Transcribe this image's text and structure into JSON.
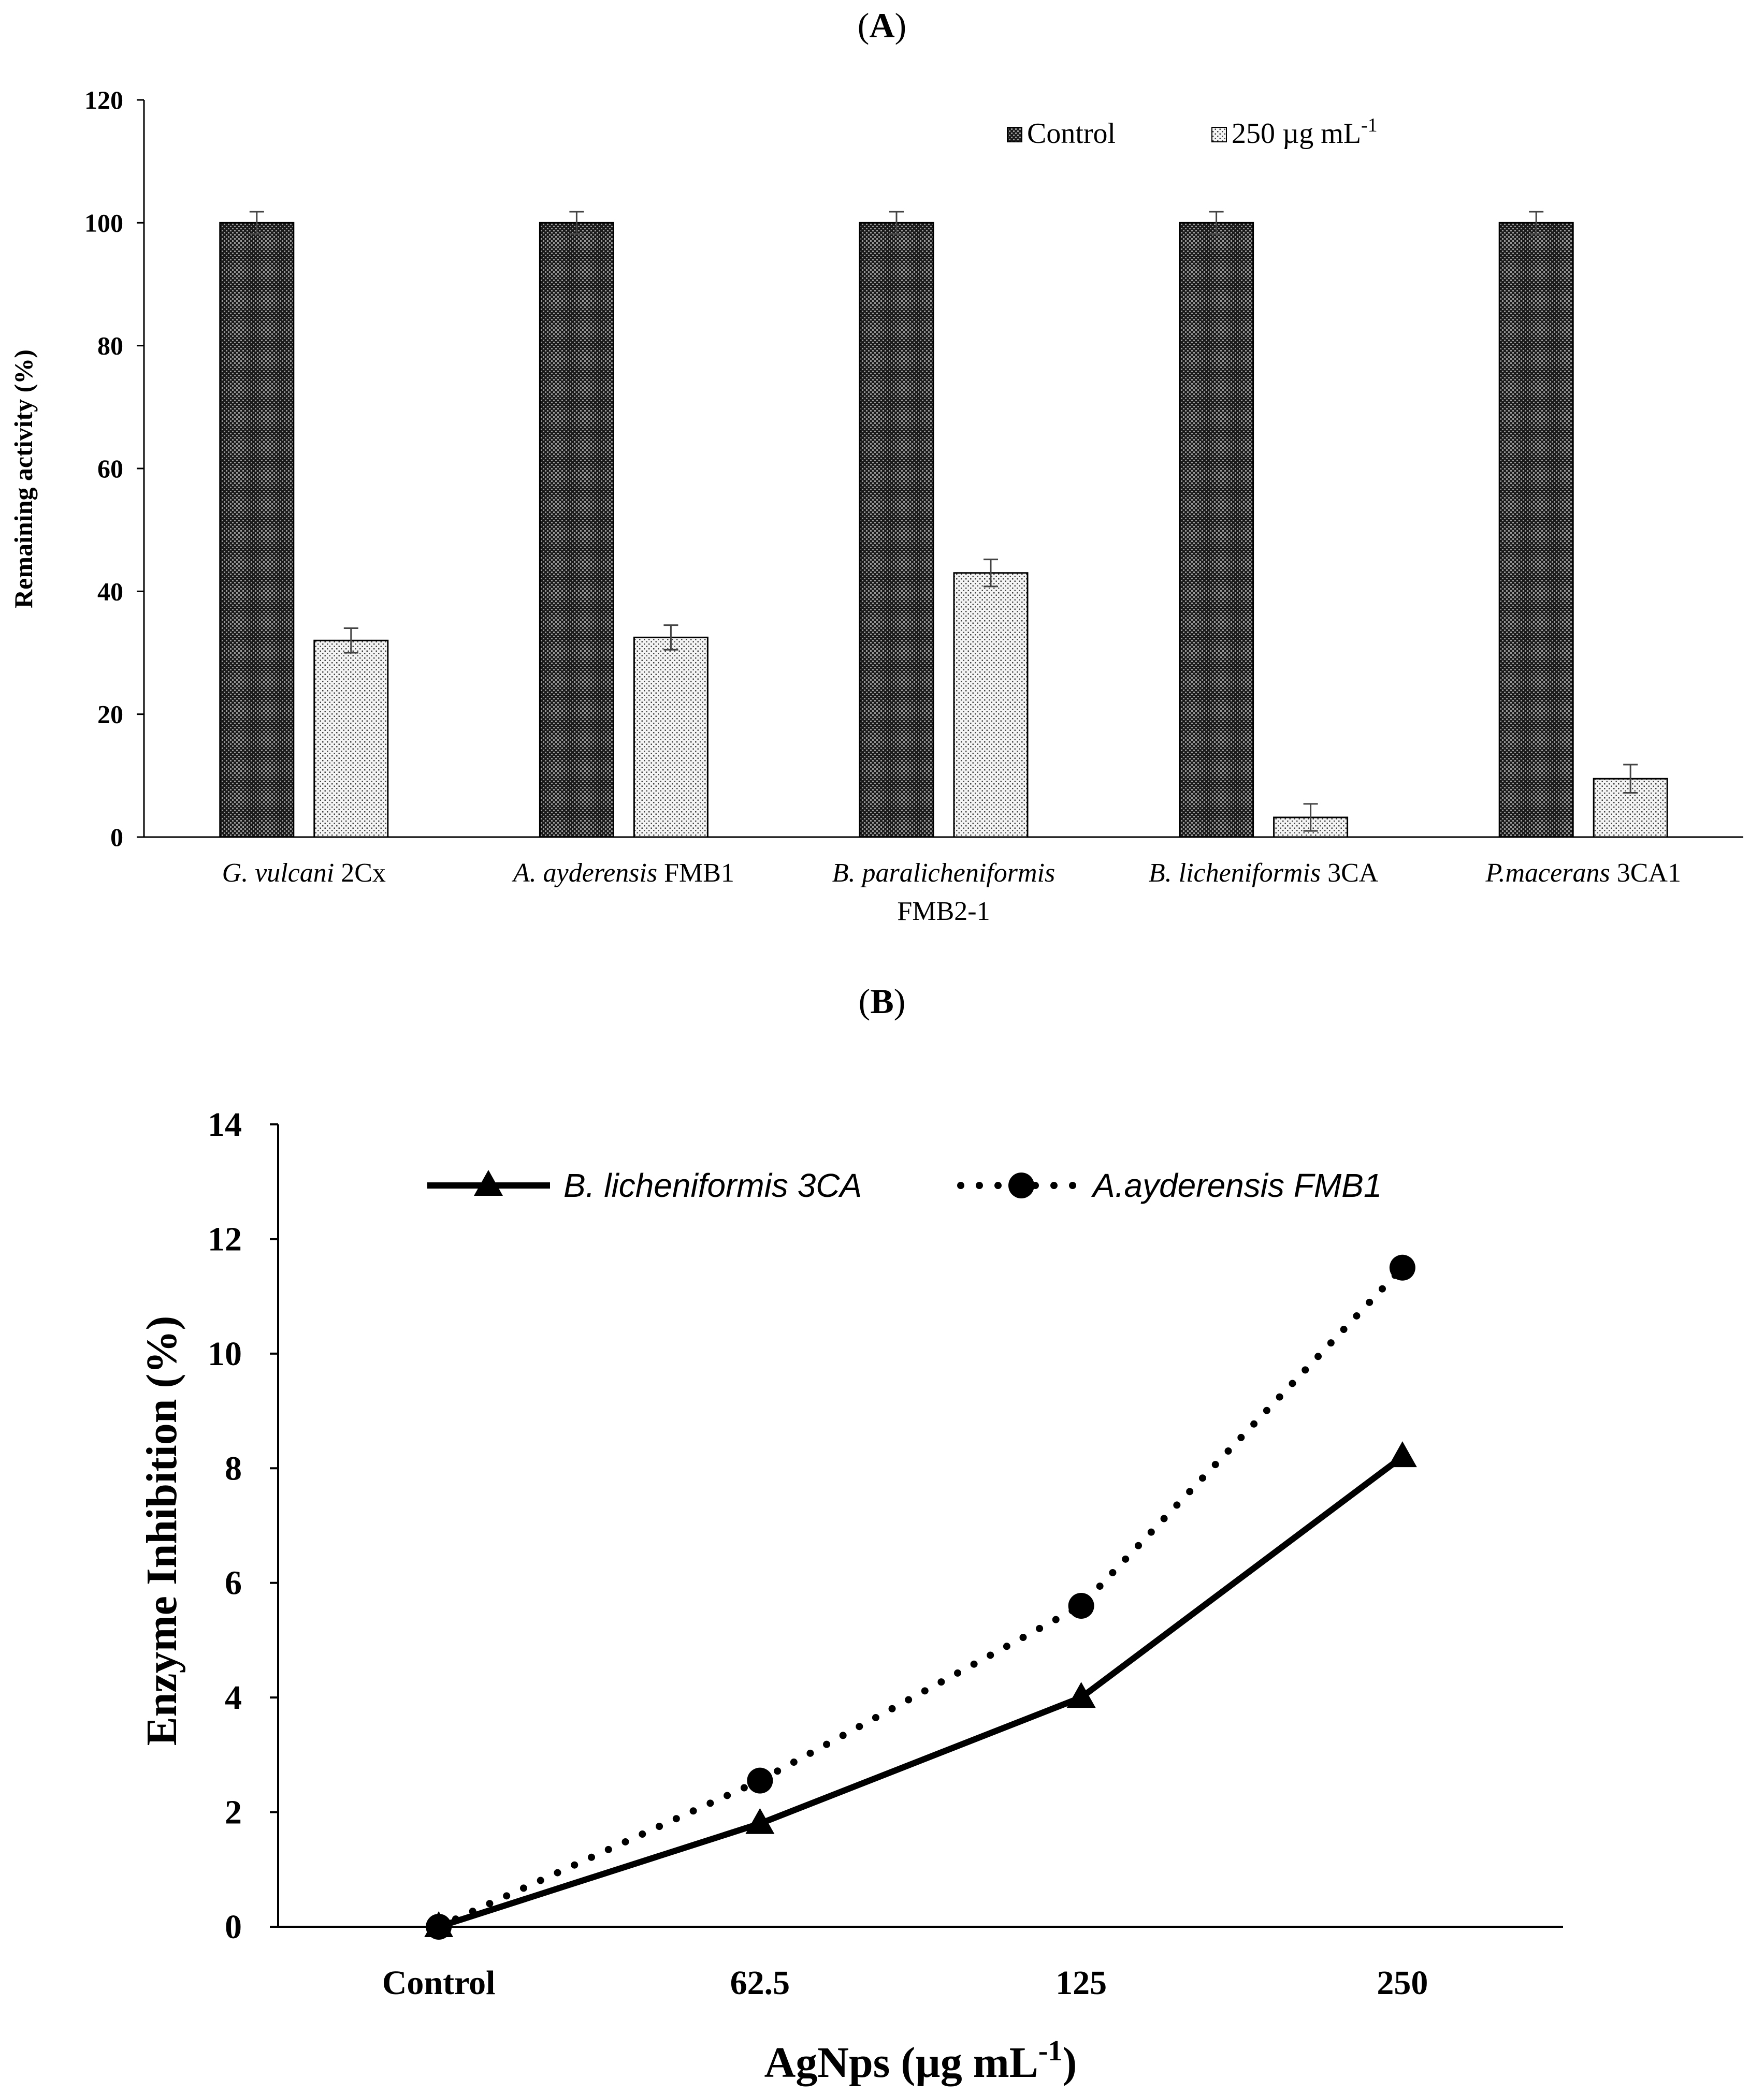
{
  "panel_a": {
    "label_open": "(",
    "label_letter": "A",
    "label_close": ")"
  },
  "panel_b": {
    "label_open": "(",
    "label_letter": "B",
    "label_close": ")"
  },
  "chart_data": [
    {
      "type": "bar",
      "panel": "A",
      "ylabel": "Remaining  activity  (%)",
      "ylim": [
        0,
        120
      ],
      "yticks": [
        0,
        20,
        40,
        60,
        80,
        100,
        120
      ],
      "categories": [
        {
          "italic": "G. vulcani",
          "plain": " 2Cx",
          "line2": ""
        },
        {
          "italic": "A. ayderensis",
          "plain": " FMB1",
          "line2": ""
        },
        {
          "italic": "B. paralicheniformis",
          "plain": "",
          "line2": "FMB2-1"
        },
        {
          "italic": "B. licheniformis",
          "plain": "  3CA",
          "line2": ""
        },
        {
          "italic": "P.macerans",
          "plain": " 3CA1",
          "line2": ""
        }
      ],
      "series": [
        {
          "name": "Control",
          "values": [
            100,
            100,
            100,
            100,
            100
          ],
          "errors": [
            1.8,
            1.8,
            1.8,
            1.8,
            1.8
          ],
          "pattern": "dense-checker"
        },
        {
          "name": "250 µg mL",
          "name_sup": "-1",
          "values": [
            32,
            32.5,
            43,
            3.2,
            9.5
          ],
          "errors": [
            2,
            2,
            2.2,
            2.2,
            2.3
          ],
          "pattern": "light-dots"
        }
      ],
      "legend_position": "top-right",
      "grid": false
    },
    {
      "type": "line",
      "panel": "B",
      "xlabel": "AgNps (µg mL",
      "xlabel_sup": "-1",
      "xlabel_close": ")",
      "ylabel": "Enzyme Inhibition  (%)",
      "ylim": [
        0,
        14
      ],
      "yticks": [
        0,
        2,
        4,
        6,
        8,
        10,
        12,
        14
      ],
      "categories": [
        "Control",
        "62.5",
        "125",
        "250"
      ],
      "series": [
        {
          "name": "B. licheniformis 3CA",
          "values": [
            0,
            1.8,
            4.0,
            8.2
          ],
          "line": "solid",
          "marker": "triangle",
          "color": "#000000"
        },
        {
          "name": "A.ayderensis FMB1",
          "values": [
            0,
            2.55,
            5.6,
            11.5
          ],
          "line": "dotted",
          "marker": "circle",
          "color": "#000000"
        }
      ],
      "legend_position": "top",
      "grid": false
    }
  ]
}
